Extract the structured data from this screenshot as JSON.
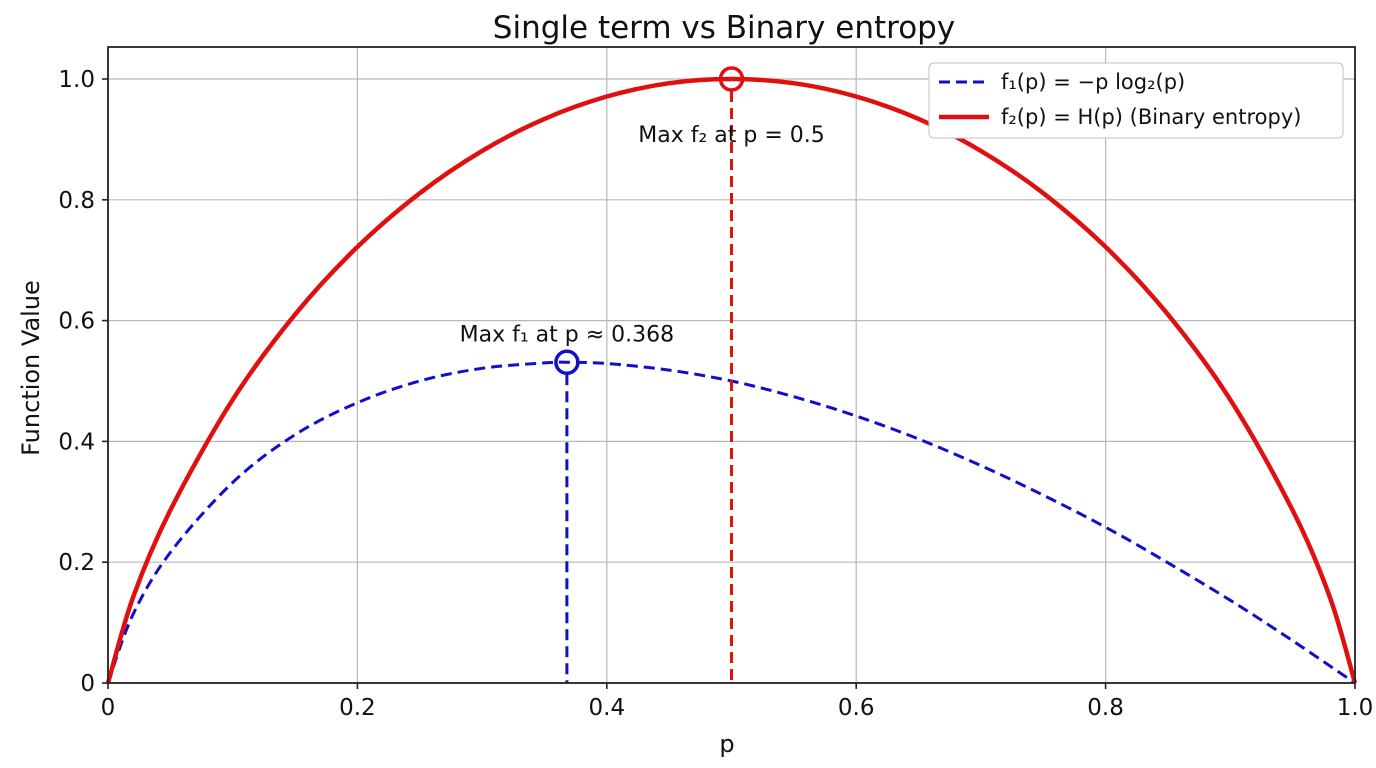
{
  "chart_data": {
    "type": "line",
    "title": "Single term vs Binary entropy",
    "xlabel": "p",
    "ylabel": "Function Value",
    "xlim": [
      0,
      1
    ],
    "ylim": [
      0,
      1.0
    ],
    "grid": true,
    "legend_position": "top-right",
    "x_ticks": [
      {
        "value": 0,
        "label": "0"
      },
      {
        "value": 0.2,
        "label": "0.2"
      },
      {
        "value": 0.4,
        "label": "0.4"
      },
      {
        "value": 0.6,
        "label": "0.6"
      },
      {
        "value": 0.8,
        "label": "0.8"
      },
      {
        "value": 1.0,
        "label": "1.0"
      }
    ],
    "y_ticks": [
      {
        "value": 0,
        "label": "0"
      },
      {
        "value": 0.2,
        "label": "0.2"
      },
      {
        "value": 0.4,
        "label": "0.4"
      },
      {
        "value": 0.6,
        "label": "0.6"
      },
      {
        "value": 0.8,
        "label": "0.8"
      },
      {
        "value": 1.0,
        "label": "1.0"
      }
    ],
    "series": [
      {
        "name": "f1(p) = -p log2(p)",
        "color": "#1010c8",
        "style": "dashed",
        "x": [
          0,
          0.02,
          0.05,
          0.1,
          0.15,
          0.2,
          0.25,
          0.3,
          0.35,
          0.368,
          0.4,
          0.45,
          0.5,
          0.55,
          0.6,
          0.65,
          0.7,
          0.75,
          0.8,
          0.85,
          0.9,
          0.95,
          1.0
        ],
        "y": [
          0,
          0.113,
          0.216,
          0.332,
          0.411,
          0.464,
          0.5,
          0.521,
          0.53,
          0.531,
          0.529,
          0.518,
          0.5,
          0.474,
          0.442,
          0.404,
          0.36,
          0.311,
          0.258,
          0.199,
          0.137,
          0.07,
          0
        ]
      },
      {
        "name": "f2(p) = H(p) (Binary entropy)",
        "color": "#e01010",
        "style": "solid",
        "x": [
          0,
          0.02,
          0.05,
          0.1,
          0.15,
          0.2,
          0.25,
          0.3,
          0.35,
          0.4,
          0.45,
          0.5,
          0.55,
          0.6,
          0.65,
          0.7,
          0.75,
          0.8,
          0.85,
          0.9,
          0.95,
          0.98,
          1.0
        ],
        "y": [
          0,
          0.141,
          0.286,
          0.469,
          0.61,
          0.722,
          0.811,
          0.881,
          0.934,
          0.971,
          0.993,
          1.0,
          0.993,
          0.971,
          0.934,
          0.881,
          0.811,
          0.722,
          0.61,
          0.469,
          0.286,
          0.141,
          0
        ]
      }
    ],
    "markers": [
      {
        "series": 0,
        "x": 0.368,
        "y": 0.531,
        "annotation": "Max f₁ at p ≈ 0.368"
      },
      {
        "series": 1,
        "x": 0.5,
        "y": 1.0,
        "annotation": "Max f₂ at p = 0.5"
      }
    ],
    "legend": [
      {
        "series": 0,
        "label": "f₁(p) = −p log₂(p)"
      },
      {
        "series": 1,
        "label": "f₂(p) = H(p) (Binary entropy)"
      }
    ]
  }
}
